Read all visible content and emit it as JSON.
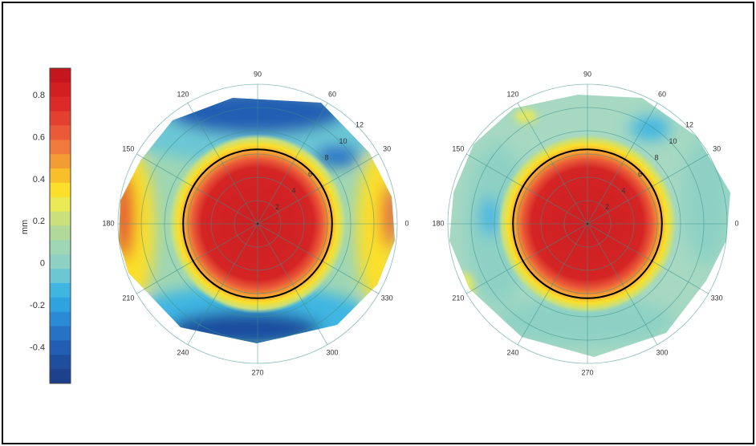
{
  "chart_data": [
    {
      "type": "colorbar",
      "label": "mm",
      "ylim": [
        -0.57,
        0.93
      ],
      "yticks": [
        -0.4,
        -0.2,
        0,
        0.2,
        0.4,
        0.6,
        0.8
      ],
      "colors": [
        "#c4161c",
        "#d21f22",
        "#dc2a28",
        "#e4402f",
        "#ea5a38",
        "#ef7a3c",
        "#f49c34",
        "#f8bf2a",
        "#fbdf2a",
        "#e9ea55",
        "#c9e07c",
        "#b0d99a",
        "#9fd6b4",
        "#8ed1c4",
        "#6cc7d4",
        "#3fb6e2",
        "#2fa3e0",
        "#2b8ad6",
        "#2673c6",
        "#225eb3",
        "#1f4e9f",
        "#1d418c"
      ]
    },
    {
      "type": "polar",
      "thetaticks": [
        0,
        30,
        60,
        90,
        120,
        150,
        180,
        210,
        240,
        270,
        300,
        330
      ],
      "rticks": [
        2,
        4,
        6,
        8,
        10,
        12
      ],
      "rlim": [
        0,
        12
      ],
      "optical_zone": 6.4
    },
    {
      "type": "polar",
      "thetaticks": [
        0,
        30,
        60,
        90,
        120,
        150,
        180,
        210,
        240,
        270,
        300,
        330
      ],
      "rticks": [
        2,
        4,
        6,
        8,
        10,
        12
      ],
      "rlim": [
        0,
        12
      ],
      "optical_zone": 6.4
    }
  ]
}
